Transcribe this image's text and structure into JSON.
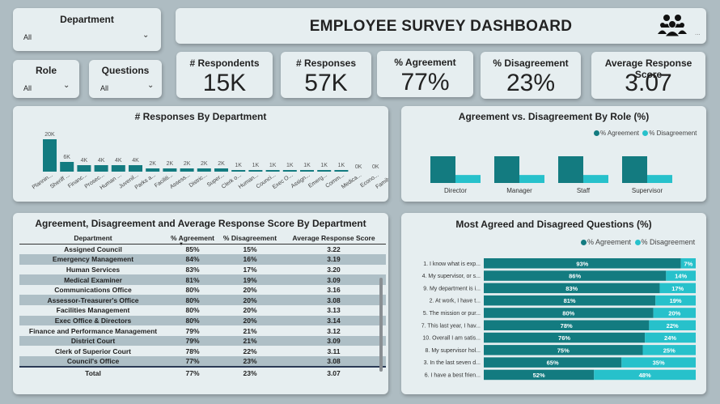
{
  "title": "EMPLOYEE SURVEY DASHBOARD",
  "slicers": {
    "department": {
      "label": "Department",
      "value": "All"
    },
    "role": {
      "label": "Role",
      "value": "All"
    },
    "questions": {
      "label": "Questions",
      "value": "All"
    }
  },
  "kpis": [
    {
      "label": "# Respondents",
      "value": "15K"
    },
    {
      "label": "# Responses",
      "value": "57K"
    },
    {
      "label": "% Agreement",
      "value": "77%"
    },
    {
      "label": "% Disagreement",
      "value": "23%"
    },
    {
      "label": "Average Response Score",
      "value": "3.07"
    }
  ],
  "colors": {
    "agreement": "#137b80",
    "disagreement": "#27c1cb",
    "background": "#aebcc2",
    "card": "#e6eef0"
  },
  "icons": {
    "header": "people-group-icon"
  },
  "dept_chart": {
    "title": "# Responses By Department",
    "chart_data": {
      "type": "bar",
      "categories": [
        "Plannin...",
        "Sheriff ...",
        "Financ...",
        "Prosec...",
        "Human ...",
        "Juvenil...",
        "Parks a...",
        "Faciliti...",
        "Assess...",
        "Distric...",
        "Super...",
        "Clerk o...",
        "Human...",
        "Counci...",
        "Exec O...",
        "Assign...",
        "Emerg...",
        "Comm...",
        "Medica...",
        "Econo...",
        "Family ..."
      ],
      "values": [
        20000,
        6000,
        4000,
        4000,
        4000,
        4000,
        2000,
        2000,
        2000,
        2000,
        2000,
        1000,
        1000,
        1000,
        1000,
        1000,
        1000,
        1000,
        0,
        0,
        0
      ],
      "labels": [
        "20K",
        "6K",
        "4K",
        "4K",
        "4K",
        "4K",
        "2K",
        "2K",
        "2K",
        "2K",
        "2K",
        "1K",
        "1K",
        "1K",
        "1K",
        "1K",
        "1K",
        "1K",
        "0K",
        "0K",
        "0K"
      ]
    }
  },
  "role_chart": {
    "title": "Agreement vs. Disagreement By Role (%)",
    "legend": [
      "% Agreement",
      "% Disagreement"
    ],
    "chart_data": {
      "type": "bar",
      "categories": [
        "Director",
        "Manager",
        "Staff",
        "Supervisor"
      ],
      "series": [
        {
          "name": "% Agreement",
          "values": [
            77,
            77,
            77,
            77
          ]
        },
        {
          "name": "% Disagreement",
          "values": [
            23,
            23,
            23,
            23
          ]
        }
      ],
      "ylim": [
        0,
        100
      ]
    }
  },
  "table": {
    "title": "Agreement, Disagreement and Average Response Score By Department",
    "columns": [
      "Department",
      "% Agreement",
      "% Disagreement",
      "Average Response Score"
    ],
    "rows": [
      [
        "Assigned Council",
        "85%",
        "15%",
        "3.22"
      ],
      [
        "Emergency Management",
        "84%",
        "16%",
        "3.19"
      ],
      [
        "Human Services",
        "83%",
        "17%",
        "3.20"
      ],
      [
        "Medical Examiner",
        "81%",
        "19%",
        "3.09"
      ],
      [
        "Communications Office",
        "80%",
        "20%",
        "3.16"
      ],
      [
        "Assessor-Treasurer's Office",
        "80%",
        "20%",
        "3.08"
      ],
      [
        "Facilities Management",
        "80%",
        "20%",
        "3.13"
      ],
      [
        "Exec Office & Directors",
        "80%",
        "20%",
        "3.14"
      ],
      [
        "Finance and Performance Management",
        "79%",
        "21%",
        "3.12"
      ],
      [
        "District Court",
        "79%",
        "21%",
        "3.09"
      ],
      [
        "Clerk of Superior Court",
        "78%",
        "22%",
        "3.11"
      ],
      [
        "Council's Office",
        "77%",
        "23%",
        "3.08"
      ]
    ],
    "total": [
      "Total",
      "77%",
      "23%",
      "3.07"
    ]
  },
  "questions_chart": {
    "title": "Most Agreed and Disagreed Questions (%)",
    "legend": [
      "% Agreement",
      "% Disagreement"
    ],
    "chart_data": {
      "type": "bar",
      "categories": [
        "1. I know what is exp...",
        "4. My supervisor, or s...",
        "9. My department is i...",
        "2. At work, I have t...",
        "5. The mission or pur...",
        "7. This last year, I hav...",
        "10. Overall I am satis...",
        "8. My supervisor hol...",
        "3. In the last seven d...",
        "6. I have a best frien..."
      ],
      "series": [
        {
          "name": "% Agreement",
          "values": [
            93,
            86,
            83,
            81,
            80,
            78,
            76,
            75,
            65,
            52
          ]
        },
        {
          "name": "% Disagreement",
          "values": [
            7,
            14,
            17,
            19,
            20,
            22,
            24,
            25,
            35,
            48
          ]
        }
      ]
    }
  }
}
